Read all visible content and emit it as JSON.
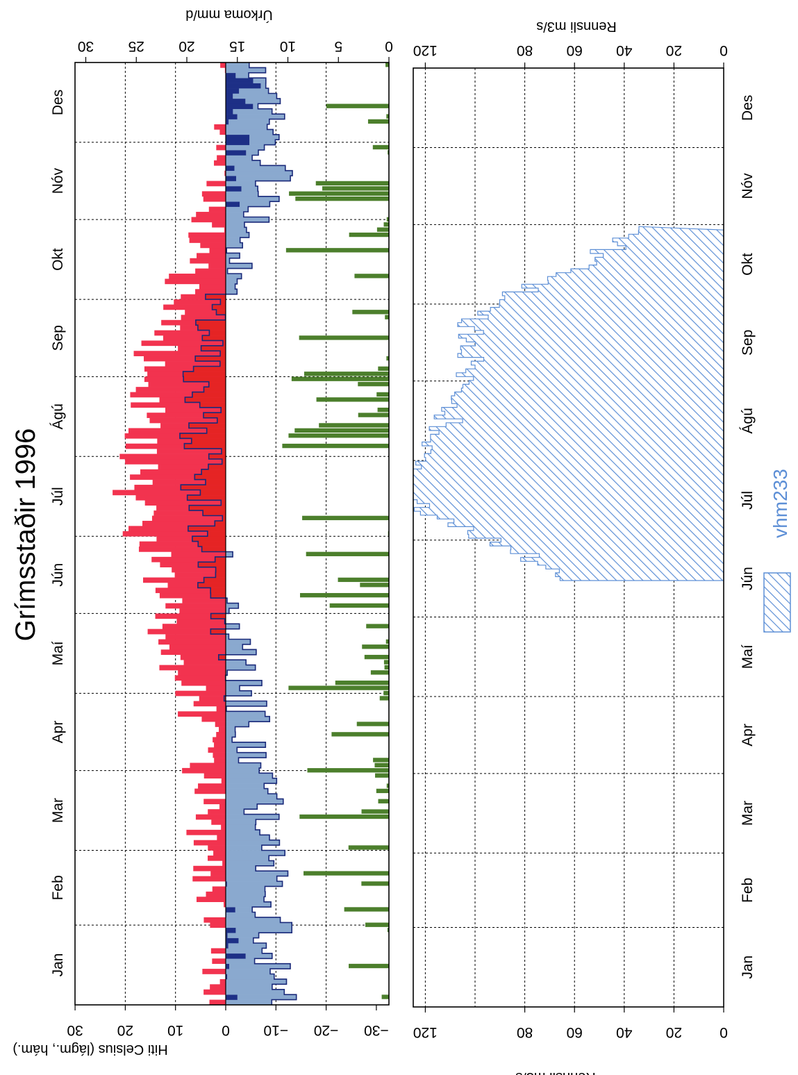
{
  "title": "Grímsstaðir 1996",
  "months": [
    "Jan",
    "Feb",
    "Mar",
    "Apr",
    "Maí",
    "Jún",
    "Júl",
    "Ágú",
    "Sep",
    "Okt",
    "Nóv",
    "Des"
  ],
  "colors": {
    "temp_max": "#f2334f",
    "temp_min": "#1a2a7a",
    "temp_warm_fill": "#e52424",
    "temp_cold_light": "#8aa9cf",
    "temp_cold_dark": "#1d2f86",
    "precip": "#4c7f2c",
    "flow": "#5d8fd6"
  },
  "chart_data": [
    {
      "id": "temp_precip",
      "type": "bar",
      "series_labels": [
        "Hiti Celsius (lágm., hám.)",
        "Úrkoma mm/d"
      ],
      "temp_axis": {
        "label": "Hiti Celsius (lágm., hám.)",
        "ticks": [
          "30",
          "20",
          "10",
          "0",
          "−10",
          "−20",
          "−30"
        ],
        "range": [
          -30,
          30
        ]
      },
      "precip_axis": {
        "label": "Úrkoma mm/d",
        "ticks": [
          "30",
          "25",
          "20",
          "15",
          "10",
          "5",
          "0"
        ],
        "range": [
          0,
          30
        ]
      },
      "months_approx_max_temp": [
        -1,
        1,
        3,
        3,
        9,
        13,
        17,
        15,
        12,
        4,
        -2,
        -4
      ],
      "months_approx_min_temp": [
        -10,
        -9,
        -8,
        -5,
        -2,
        2,
        5,
        5,
        3,
        -3,
        -9,
        -8
      ],
      "grid": true
    },
    {
      "id": "flow",
      "type": "area",
      "series": [
        {
          "name": "vhm233"
        }
      ],
      "axis": {
        "label": "Rennsli m3/s",
        "ticks": [
          "0",
          "20",
          "40",
          "60",
          "80",
          "120"
        ],
        "tick_values": [
          0,
          20,
          40,
          60,
          80,
          120
        ],
        "range": [
          0,
          140
        ]
      },
      "flow_profile": {
        "season_start_month": 5.45,
        "season_end_month": 9.93,
        "monthly_peak": [
          [
            "Jún",
            60
          ],
          [
            "Júl",
            135
          ],
          [
            "Ágú",
            105
          ],
          [
            "Sep",
            100
          ],
          [
            "Okt",
            30
          ]
        ]
      },
      "legend": {
        "label": "vhm233",
        "position": "right"
      },
      "grid": true
    }
  ]
}
